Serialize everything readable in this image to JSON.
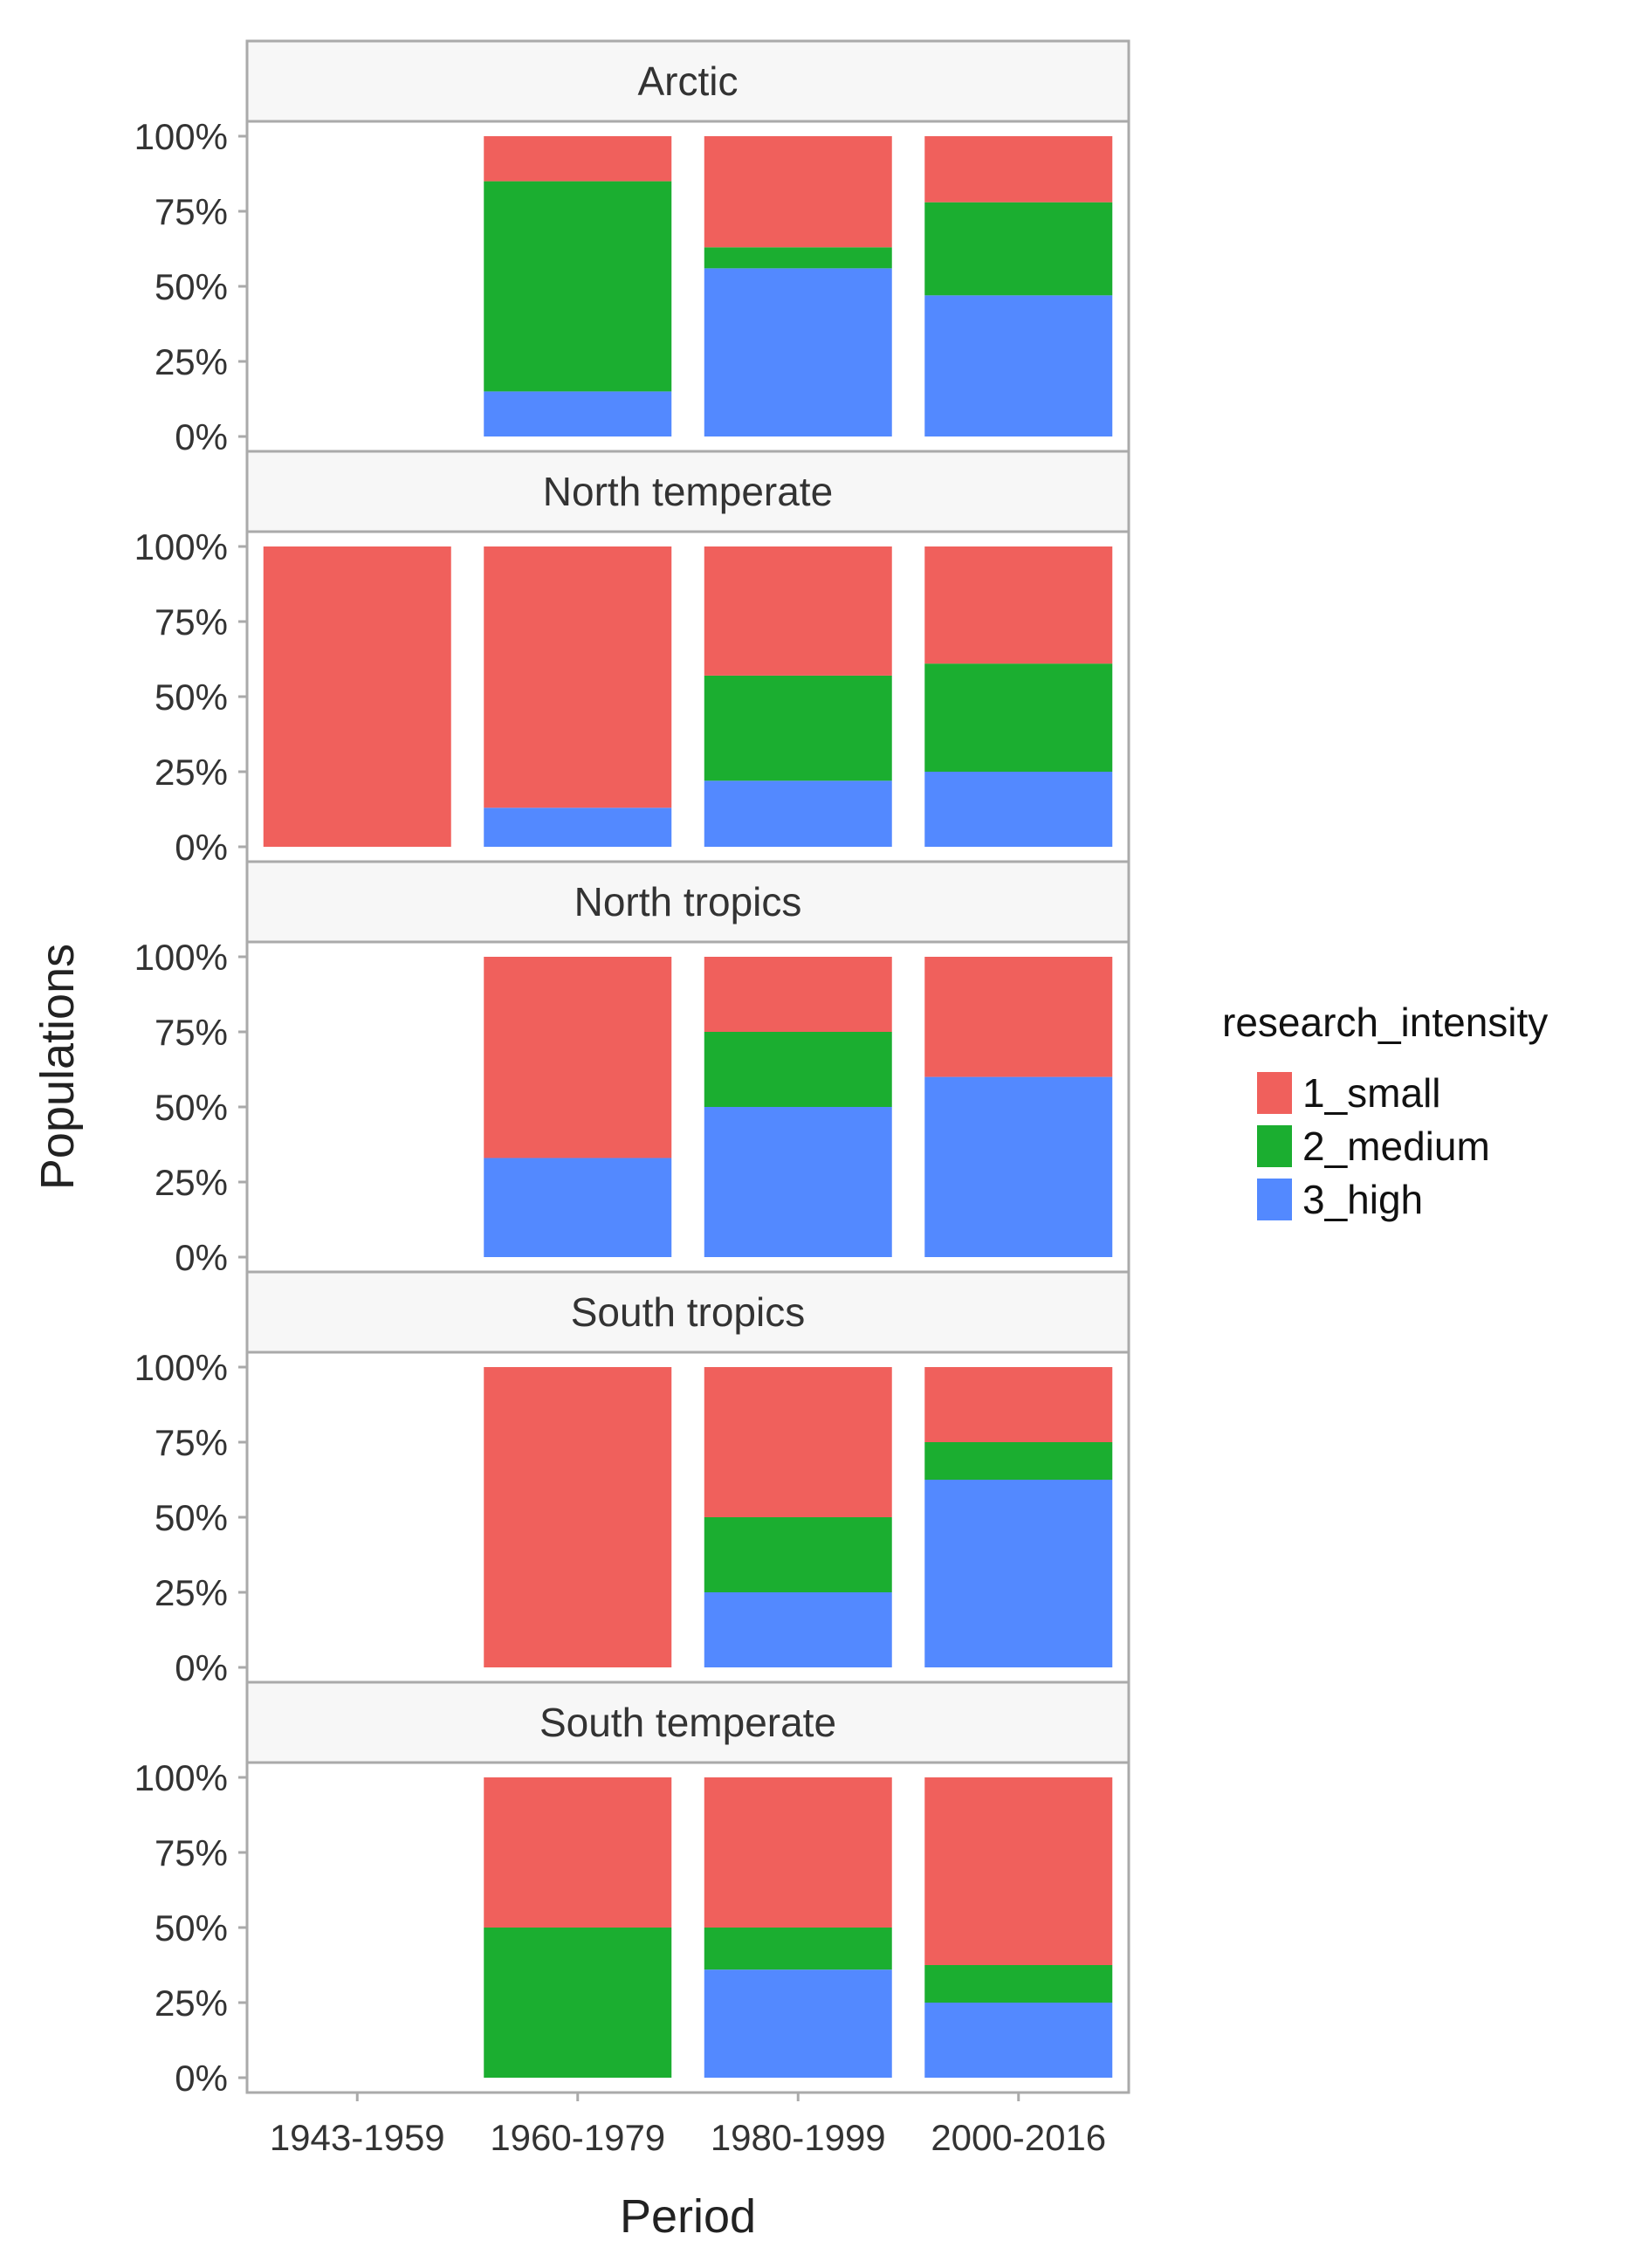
{
  "chart_data": {
    "type": "bar",
    "stacked": true,
    "facet_by": "region",
    "xlabel": "Period",
    "ylabel": "Populations",
    "ylim": [
      0,
      1
    ],
    "y_ticks": [
      "0%",
      "25%",
      "50%",
      "75%",
      "100%"
    ],
    "y_tick_values": [
      0,
      0.25,
      0.5,
      0.75,
      1
    ],
    "categories": [
      "1943-1959",
      "1960-1979",
      "1980-1999",
      "2000-2016"
    ],
    "legend": {
      "title": "research_intensity",
      "position": "right",
      "items": [
        {
          "name": "1_small",
          "color": "#F0605C"
        },
        {
          "name": "2_medium",
          "color": "#1BAE30"
        },
        {
          "name": "3_high",
          "color": "#5389FF"
        }
      ]
    },
    "series_colors": {
      "1_small": "#F0605C",
      "2_medium": "#1BAE30",
      "3_high": "#5389FF"
    },
    "facets": [
      {
        "name": "Arctic",
        "bars": [
          null,
          {
            "3_high": 0.15,
            "2_medium": 0.7,
            "1_small": 0.15
          },
          {
            "3_high": 0.56,
            "2_medium": 0.07,
            "1_small": 0.37
          },
          {
            "3_high": 0.47,
            "2_medium": 0.31,
            "1_small": 0.22
          }
        ]
      },
      {
        "name": "North temperate",
        "bars": [
          {
            "3_high": 0.0,
            "2_medium": 0.0,
            "1_small": 1.0
          },
          {
            "3_high": 0.13,
            "2_medium": 0.0,
            "1_small": 0.87
          },
          {
            "3_high": 0.22,
            "2_medium": 0.35,
            "1_small": 0.43
          },
          {
            "3_high": 0.25,
            "2_medium": 0.36,
            "1_small": 0.39
          }
        ]
      },
      {
        "name": "North tropics",
        "bars": [
          null,
          {
            "3_high": 0.33,
            "2_medium": 0.0,
            "1_small": 0.67
          },
          {
            "3_high": 0.5,
            "2_medium": 0.25,
            "1_small": 0.25
          },
          {
            "3_high": 0.6,
            "2_medium": 0.0,
            "1_small": 0.4
          }
        ]
      },
      {
        "name": "South tropics",
        "bars": [
          null,
          {
            "3_high": 0.0,
            "2_medium": 0.0,
            "1_small": 1.0
          },
          {
            "3_high": 0.25,
            "2_medium": 0.25,
            "1_small": 0.5
          },
          {
            "3_high": 0.625,
            "2_medium": 0.125,
            "1_small": 0.25
          }
        ]
      },
      {
        "name": "South temperate",
        "bars": [
          null,
          {
            "3_high": 0.0,
            "2_medium": 0.5,
            "1_small": 0.5
          },
          {
            "3_high": 0.36,
            "2_medium": 0.14,
            "1_small": 0.5
          },
          {
            "3_high": 0.25,
            "2_medium": 0.125,
            "1_small": 0.625
          }
        ]
      }
    ]
  },
  "colors": {
    "strip_bg": "#F7F7F7",
    "frame": "#AAAAAA",
    "text": "#333333"
  }
}
